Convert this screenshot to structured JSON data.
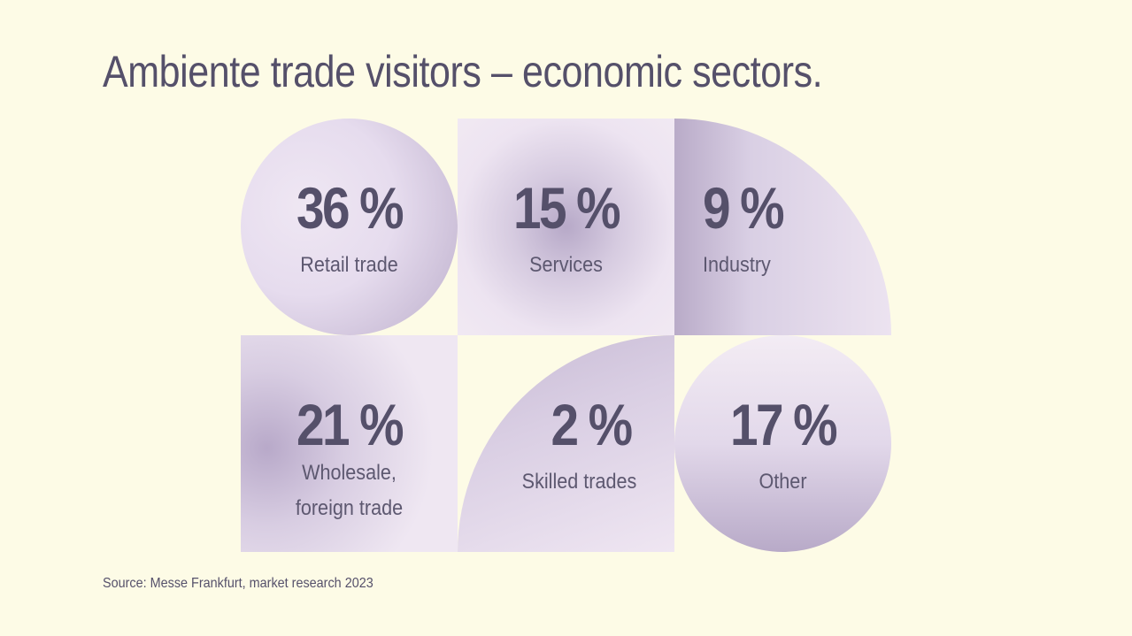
{
  "title": "Ambiente trade visitors – economic sectors.",
  "source": "Source: Messe Frankfurt, market research 2023",
  "chart_data": {
    "type": "table",
    "title": "Ambiente trade visitors – economic sectors.",
    "categories": [
      "Retail trade",
      "Services",
      "Industry",
      "Wholesale, foreign trade",
      "Skilled trades",
      "Other"
    ],
    "values": [
      36,
      15,
      9,
      21,
      2,
      17
    ],
    "value_labels": [
      "36 %",
      "15 %",
      "9 %",
      "21 %",
      "2 %",
      "17 %"
    ],
    "unit": "%"
  },
  "tiles": [
    {
      "pct": "36 %",
      "label": "Retail trade"
    },
    {
      "pct": "15 %",
      "label": "Services"
    },
    {
      "pct": "9 %",
      "label": "Industry"
    },
    {
      "pct": "21 %",
      "label_line1": "Wholesale,",
      "label_line2": "foreign trade"
    },
    {
      "pct": "2 %",
      "label": "Skilled trades"
    },
    {
      "pct": "17 %",
      "label": "Other"
    }
  ]
}
